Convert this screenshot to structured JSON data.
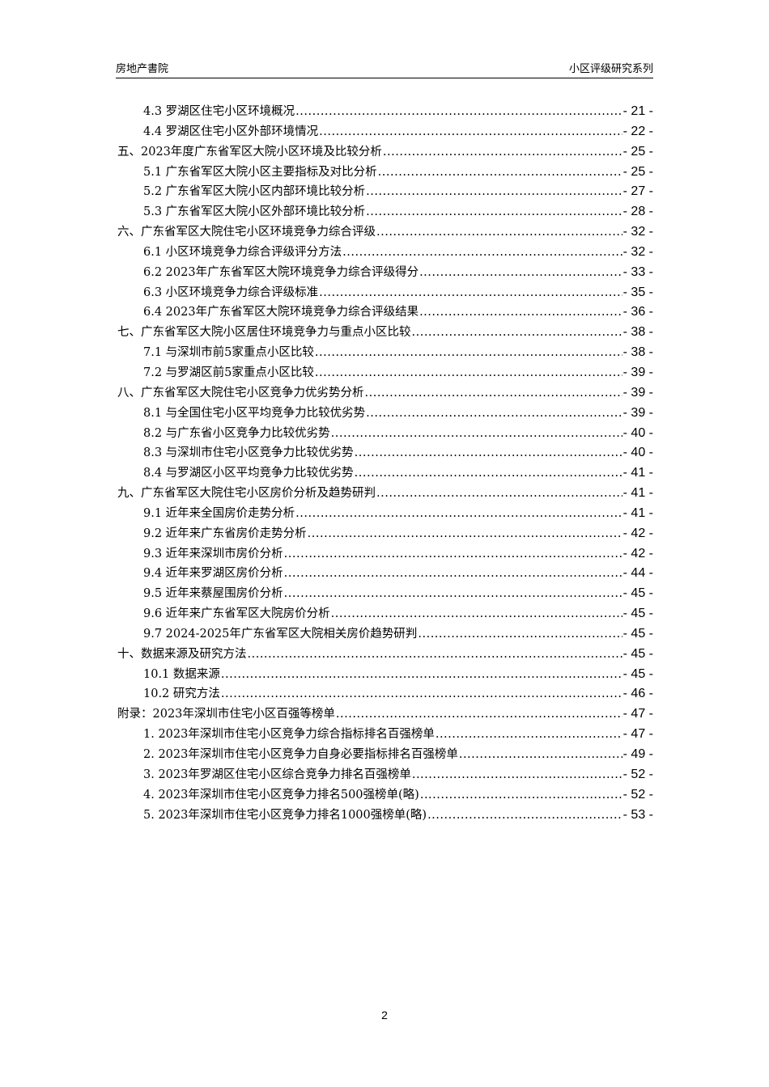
{
  "header": {
    "left": "房地产書院",
    "right": "小区评级研究系列"
  },
  "toc": [
    {
      "level": 2,
      "title": "4.3 罗湖区住宅小区环境概况",
      "page": "- 21 -"
    },
    {
      "level": 2,
      "title": "4.4 罗湖区住宅小区外部环境情况",
      "page": "- 22 -"
    },
    {
      "level": 1,
      "title": "五、2023年度广东省军区大院小区环境及比较分析",
      "page": "- 25 -"
    },
    {
      "level": 2,
      "title": "5.1 广东省军区大院小区主要指标及对比分析",
      "page": "- 25 -"
    },
    {
      "level": 2,
      "title": "5.2 广东省军区大院小区内部环境比较分析",
      "page": "- 27 -"
    },
    {
      "level": 2,
      "title": "5.3 广东省军区大院小区外部环境比较分析",
      "page": "- 28 -"
    },
    {
      "level": 1,
      "title": "六、广东省军区大院住宅小区环境竞争力综合评级",
      "page": "- 32 -"
    },
    {
      "level": 2,
      "title": "6.1 小区环境竞争力综合评级评分方法",
      "page": "- 32 -"
    },
    {
      "level": 2,
      "title": "6.2 2023年广东省军区大院环境竞争力综合评级得分",
      "page": "- 33 -"
    },
    {
      "level": 2,
      "title": "6.3 小区环境竞争力综合评级标准",
      "page": "- 35 -"
    },
    {
      "level": 2,
      "title": "6.4 2023年广东省军区大院环境竞争力综合评级结果",
      "page": "- 36 -"
    },
    {
      "level": 1,
      "title": "七、广东省军区大院小区居住环境竞争力与重点小区比较",
      "page": "- 38 -"
    },
    {
      "level": 2,
      "title": "7.1 与深圳市前5家重点小区比较",
      "page": "- 38 -"
    },
    {
      "level": 2,
      "title": "7.2 与罗湖区前5家重点小区比较",
      "page": "- 39 -"
    },
    {
      "level": 1,
      "title": "八、广东省军区大院住宅小区竞争力优劣势分析",
      "page": "- 39 -"
    },
    {
      "level": 2,
      "title": "8.1 与全国住宅小区平均竞争力比较优劣势",
      "page": "- 39 -"
    },
    {
      "level": 2,
      "title": "8.2 与广东省小区竞争力比较优劣势",
      "page": "- 40 -"
    },
    {
      "level": 2,
      "title": "8.3 与深圳市住宅小区竞争力比较优劣势",
      "page": "- 40 -"
    },
    {
      "level": 2,
      "title": "8.4 与罗湖区小区平均竞争力比较优劣势",
      "page": "- 41 -"
    },
    {
      "level": 1,
      "title": "九、广东省军区大院住宅小区房价分析及趋势研判",
      "page": "- 41 -"
    },
    {
      "level": 2,
      "title": "9.1 近年来全国房价走势分析",
      "page": "- 41 -"
    },
    {
      "level": 2,
      "title": "9.2 近年来广东省房价走势分析",
      "page": "- 42 -"
    },
    {
      "level": 2,
      "title": "9.3 近年来深圳市房价分析",
      "page": "- 42 -"
    },
    {
      "level": 2,
      "title": "9.4 近年来罗湖区房价分析",
      "page": "- 44 -"
    },
    {
      "level": 2,
      "title": "9.5 近年来蔡屋围房价分析",
      "page": "- 45 -"
    },
    {
      "level": 2,
      "title": "9.6 近年来广东省军区大院房价分析",
      "page": "- 45 -"
    },
    {
      "level": 2,
      "title": "9.7 2024-2025年广东省军区大院相关房价趋势研判",
      "page": "- 45 -"
    },
    {
      "level": 1,
      "title": "十、数据来源及研究方法",
      "page": "- 45 -"
    },
    {
      "level": 2,
      "title": "10.1 数据来源",
      "page": "- 45 -"
    },
    {
      "level": 2,
      "title": "10.2 研究方法",
      "page": "- 46 -"
    },
    {
      "level": 1,
      "title": "附录：2023年深圳市住宅小区百强等榜单",
      "page": "- 47 -"
    },
    {
      "level": 2,
      "title": "1. 2023年深圳市住宅小区竞争力综合指标排名百强榜单",
      "page": "- 47 -"
    },
    {
      "level": 2,
      "title": "2. 2023年深圳市住宅小区竞争力自身必要指标排名百强榜单",
      "page": "- 49 -"
    },
    {
      "level": 2,
      "title": "3. 2023年罗湖区住宅小区综合竞争力排名百强榜单",
      "page": "- 52 -"
    },
    {
      "level": 2,
      "title": "4. 2023年深圳市住宅小区竞争力排名500强榜单(略)",
      "page": "- 52 -"
    },
    {
      "level": 2,
      "title": "5. 2023年深圳市住宅小区竞争力排名1000强榜单(略)",
      "page": "- 53 -"
    }
  ],
  "footer": {
    "page_number": "2"
  }
}
